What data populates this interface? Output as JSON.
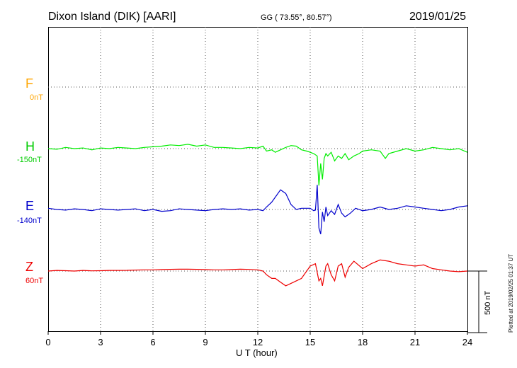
{
  "header": {
    "station": "Dixon Island (DIK)  [AARI]",
    "coords": "GG ( 73.55°,  80.57°)",
    "date": "2019/01/25"
  },
  "plotted_note": "Plotted at 2019/02/25 01:37 UT",
  "scale_label": "500 nT",
  "chart_data": {
    "type": "line",
    "xlabel": "U T (hour)",
    "xlim": [
      0,
      24
    ],
    "xticks": [
      "0",
      "3",
      "6",
      "9",
      "12",
      "15",
      "18",
      "21",
      "24"
    ],
    "grid": true,
    "series": [
      {
        "name": "F",
        "baseline": "0nT",
        "color": "#ffa500",
        "x": [],
        "y": []
      },
      {
        "name": "H",
        "baseline": "-150nT",
        "color": "#00ee00",
        "x": [
          0,
          0.5,
          1,
          1.5,
          2,
          2.5,
          3,
          3.5,
          4,
          4.5,
          5,
          5.5,
          6,
          6.5,
          7,
          7.5,
          8,
          8.5,
          9,
          9.5,
          10,
          10.5,
          11,
          11.5,
          12,
          12.3,
          12.5,
          12.8,
          13,
          13.3,
          13.6,
          13.9,
          14.2,
          14.5,
          14.8,
          15.0,
          15.2,
          15.4,
          15.5,
          15.6,
          15.7,
          15.8,
          15.9,
          16.0,
          16.2,
          16.4,
          16.6,
          16.8,
          17.0,
          17.2,
          17.5,
          17.8,
          18.0,
          18.5,
          19.0,
          19.3,
          19.5,
          20.0,
          20.5,
          21.0,
          21.5,
          22.0,
          22.5,
          23.0,
          23.5,
          24.0
        ],
        "y": [
          0,
          -5,
          10,
          0,
          5,
          -10,
          5,
          0,
          10,
          5,
          0,
          10,
          15,
          20,
          30,
          25,
          35,
          20,
          30,
          10,
          10,
          5,
          0,
          10,
          5,
          20,
          -20,
          -10,
          -30,
          -10,
          10,
          25,
          20,
          -10,
          -20,
          -30,
          -40,
          -60,
          -300,
          -120,
          -250,
          -80,
          -40,
          -60,
          -30,
          -100,
          -60,
          -80,
          -40,
          -90,
          -60,
          -40,
          -20,
          -10,
          -20,
          -80,
          -40,
          -20,
          0,
          -20,
          -10,
          10,
          0,
          -10,
          0,
          -30
        ]
      },
      {
        "name": "E",
        "baseline": "-140nT",
        "color": "#0000cc",
        "x": [
          0,
          0.5,
          1,
          1.5,
          2,
          2.5,
          3,
          3.5,
          4,
          4.5,
          5,
          5.5,
          6,
          6.5,
          7,
          7.5,
          8,
          8.5,
          9,
          9.5,
          10,
          10.5,
          11,
          11.5,
          12,
          12.3,
          12.5,
          12.8,
          13.0,
          13.3,
          13.6,
          13.9,
          14.2,
          14.5,
          15.0,
          15.2,
          15.3,
          15.4,
          15.5,
          15.6,
          15.7,
          15.8,
          15.9,
          16.0,
          16.2,
          16.4,
          16.6,
          16.8,
          17.0,
          17.3,
          17.6,
          18.0,
          18.5,
          19.0,
          19.5,
          20.0,
          20.5,
          21.0,
          21.5,
          22.0,
          22.5,
          23.0,
          23.5,
          24.0
        ],
        "y": [
          10,
          0,
          -5,
          5,
          0,
          -10,
          5,
          0,
          -5,
          0,
          5,
          -10,
          0,
          -15,
          -10,
          5,
          0,
          -5,
          -10,
          0,
          5,
          0,
          5,
          -5,
          0,
          -10,
          20,
          60,
          100,
          160,
          130,
          40,
          0,
          10,
          10,
          -10,
          -5,
          200,
          -150,
          -200,
          -20,
          -100,
          20,
          -50,
          -10,
          -40,
          40,
          -30,
          -60,
          -30,
          10,
          -10,
          0,
          20,
          0,
          10,
          30,
          20,
          10,
          0,
          -10,
          0,
          20,
          30
        ]
      },
      {
        "name": "Z",
        "baseline": "60nT",
        "color": "#ee0000",
        "x": [
          0,
          0.5,
          1,
          1.5,
          2,
          2.5,
          3,
          3.5,
          4,
          4.5,
          5,
          5.5,
          6,
          6.5,
          7,
          7.5,
          8,
          8.5,
          9,
          9.5,
          10,
          10.5,
          11,
          11.5,
          12,
          12.3,
          12.5,
          12.8,
          13.0,
          13.3,
          13.6,
          13.9,
          14.2,
          14.5,
          15.0,
          15.3,
          15.5,
          15.6,
          15.7,
          15.8,
          15.9,
          16.0,
          16.2,
          16.4,
          16.6,
          16.8,
          17.0,
          17.2,
          17.5,
          18.0,
          18.5,
          19.0,
          19.5,
          20.0,
          20.5,
          21.0,
          21.5,
          22.0,
          22.5,
          23.0,
          23.5,
          24.0
        ],
        "y": [
          0,
          5,
          3,
          0,
          5,
          2,
          3,
          5,
          5,
          6,
          8,
          10,
          10,
          12,
          14,
          15,
          15,
          14,
          12,
          10,
          10,
          12,
          15,
          13,
          10,
          0,
          -30,
          -60,
          -60,
          -90,
          -120,
          -100,
          -80,
          -60,
          40,
          60,
          -80,
          -60,
          -120,
          -40,
          40,
          60,
          -30,
          -80,
          40,
          60,
          -50,
          30,
          80,
          20,
          60,
          90,
          80,
          60,
          50,
          40,
          50,
          20,
          10,
          0,
          -5,
          0
        ]
      }
    ]
  }
}
